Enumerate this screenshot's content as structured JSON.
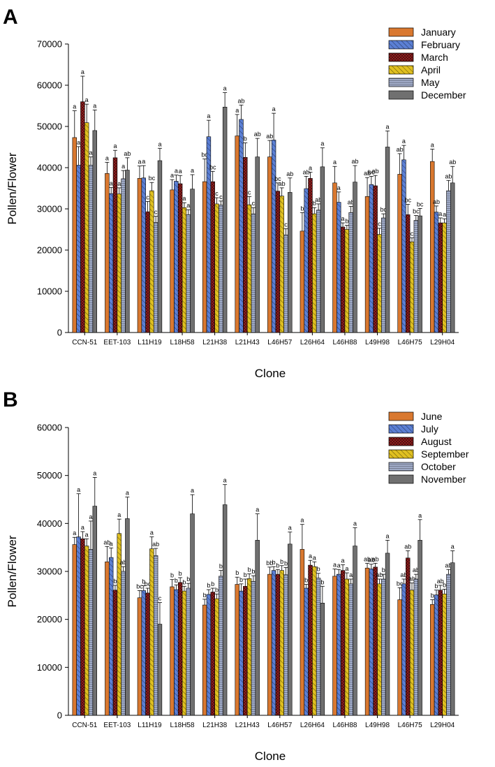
{
  "chart_data": [
    {
      "panel_label": "A",
      "type": "bar",
      "xlabel": "Clone",
      "ylabel": "Pollen/Flower",
      "ylim": [
        0,
        70000
      ],
      "yticks": [
        0,
        10000,
        20000,
        30000,
        40000,
        50000,
        60000,
        70000
      ],
      "grid": false,
      "legend_position": "top-right",
      "categories": [
        "CCN-51",
        "EET-103",
        "L11H19",
        "L18H58",
        "L21H38",
        "L21H43",
        "L46H57",
        "L26H64",
        "L46H88",
        "L49H98",
        "L46H75",
        "L29H04"
      ],
      "series": [
        {
          "name": "January",
          "color": "#d9782f",
          "pattern": "solid",
          "values": [
            47300,
            38600,
            37400,
            34600,
            36600,
            47700,
            42600,
            24600,
            36300,
            33000,
            38400,
            41500
          ],
          "errors": [
            6500,
            2700,
            3000,
            2500,
            5500,
            5200,
            4000,
            4500,
            4000,
            4600,
            5000,
            3000
          ],
          "letters": [
            "a",
            "a",
            "a",
            "a",
            "bc",
            "a",
            "ab",
            "b",
            "a",
            "ab",
            "ab",
            "a"
          ]
        },
        {
          "name": "February",
          "color": "#5b7fd4",
          "pattern": "diag",
          "values": [
            40600,
            33700,
            37500,
            36700,
            47500,
            51700,
            46700,
            34900,
            31600,
            35900,
            41900,
            29200
          ],
          "errors": [
            4500,
            1500,
            3000,
            1500,
            4000,
            3500,
            6500,
            3000,
            2500,
            2000,
            3500,
            1500
          ],
          "letters": [
            "a",
            "a",
            "a",
            "a",
            "a",
            "ab",
            "a",
            "ab",
            "a",
            "bc",
            "a",
            "ab"
          ]
        },
        {
          "name": "March",
          "color": "#a02020",
          "pattern": "cross",
          "values": [
            56000,
            42400,
            29300,
            36100,
            36600,
            42500,
            34300,
            37400,
            25600,
            35600,
            28600,
            26600
          ],
          "errors": [
            6200,
            1800,
            2500,
            2000,
            2500,
            3500,
            2000,
            1500,
            1000,
            2500,
            2500,
            1200
          ],
          "letters": [
            "a",
            "a",
            "c",
            "a",
            "bc",
            "b",
            "bc",
            "a",
            "a",
            "ab",
            "bc",
            "a"
          ]
        },
        {
          "name": "April",
          "color": "#e0c020",
          "pattern": "diag",
          "values": [
            50900,
            33600,
            34400,
            30300,
            31200,
            31000,
            33100,
            28800,
            25000,
            23800,
            22000,
            26600
          ],
          "errors": [
            4500,
            1500,
            2000,
            1200,
            1500,
            2000,
            2000,
            1500,
            1000,
            1500,
            1000,
            1000
          ],
          "letters": [
            "a",
            "a",
            "bc",
            "a",
            "c",
            "c",
            "ab",
            "b",
            "b",
            "c",
            "c",
            "a"
          ]
        },
        {
          "name": "May",
          "color": "#a0abc8",
          "pattern": "horiz",
          "values": [
            40600,
            37300,
            26700,
            28600,
            30900,
            28800,
            23700,
            29700,
            29100,
            27800,
            27200,
            34400
          ],
          "errors": [
            2000,
            2000,
            1500,
            1200,
            1000,
            1500,
            1500,
            1500,
            1500,
            1000,
            1200,
            2500
          ],
          "letters": [
            "a",
            "a",
            "c",
            "a",
            "c",
            "c",
            "c",
            "ab",
            "ab",
            "bc",
            "bc",
            "ab"
          ]
        },
        {
          "name": "December",
          "color": "#707070",
          "pattern": "solid",
          "values": [
            49000,
            39400,
            41700,
            34800,
            54700,
            42600,
            34000,
            40200,
            36500,
            45000,
            28300,
            36300
          ],
          "errors": [
            5000,
            3000,
            3000,
            3500,
            3500,
            4500,
            3500,
            4600,
            4000,
            3900,
            1800,
            4000
          ],
          "letters": [
            "a",
            "ab",
            "a",
            "a",
            "a",
            "ab",
            "ab",
            "a",
            "ab",
            "a",
            "bc",
            "ab"
          ]
        }
      ]
    },
    {
      "panel_label": "B",
      "type": "bar",
      "xlabel": "Clone",
      "ylabel": "Pollen/Flower",
      "ylim": [
        0,
        60000
      ],
      "yticks": [
        0,
        10000,
        20000,
        30000,
        40000,
        50000,
        60000
      ],
      "grid": false,
      "legend_position": "top-right",
      "categories": [
        "CCN-51",
        "EET-103",
        "L11H19",
        "L18H58",
        "L21H38",
        "L21H43",
        "L46H57",
        "L26H64",
        "L46H88",
        "L49H98",
        "L46H75",
        "L29H04"
      ],
      "series": [
        {
          "name": "June",
          "color": "#d9782f",
          "pattern": "solid",
          "values": [
            35600,
            32000,
            24500,
            26800,
            23000,
            27300,
            29400,
            34600,
            29000,
            30700,
            24100,
            23100
          ],
          "errors": [
            1500,
            3200,
            1500,
            1500,
            1200,
            1500,
            1500,
            5200,
            1500,
            1000,
            2500,
            1000
          ],
          "letters": [
            "a",
            "ab",
            "bc",
            "b",
            "b",
            "b",
            "bb",
            "a",
            "a",
            "ab",
            "bc",
            "b"
          ]
        },
        {
          "name": "July",
          "color": "#5b7fd4",
          "pattern": "diag",
          "values": [
            37200,
            32900,
            26000,
            26200,
            25200,
            25900,
            30200,
            26500,
            29400,
            30500,
            27400,
            25100
          ],
          "errors": [
            9000,
            2000,
            1000,
            1000,
            1000,
            1500,
            800,
            800,
            1000,
            1000,
            1000,
            1000
          ],
          "letters": [
            "a",
            "a",
            "b",
            "b",
            "b",
            "b",
            "b",
            "b",
            "a",
            "ab",
            "ab",
            "b"
          ]
        },
        {
          "name": "August",
          "color": "#a02020",
          "pattern": "cross",
          "values": [
            36800,
            26100,
            25500,
            27700,
            25700,
            26900,
            29400,
            31300,
            30200,
            30900,
            32800,
            26100
          ],
          "errors": [
            1500,
            1000,
            1000,
            1000,
            800,
            1500,
            1000,
            1000,
            1200,
            800,
            1500,
            1000
          ],
          "letters": [
            "a",
            "b",
            "bc",
            "b",
            "b",
            "b",
            "b",
            "a",
            "a",
            "ab",
            "ab",
            "ab"
          ]
        },
        {
          "name": "September",
          "color": "#e0c020",
          "pattern": "diag",
          "values": [
            35300,
            37900,
            34700,
            25900,
            24300,
            28500,
            30200,
            31000,
            28400,
            27400,
            26100,
            25300
          ],
          "errors": [
            1500,
            3000,
            2500,
            1000,
            1000,
            1000,
            1000,
            1000,
            1300,
            1000,
            1500,
            1000
          ],
          "letters": [
            "a",
            "a",
            "a",
            "b",
            "b",
            "b",
            "b",
            "a",
            "a",
            "ab",
            "ab",
            "b"
          ]
        },
        {
          "name": "October",
          "color": "#a0abc8",
          "pattern": "horiz",
          "values": [
            34600,
            30000,
            33300,
            26500,
            29000,
            27900,
            29300,
            28600,
            27400,
            28400,
            28400,
            29400
          ],
          "errors": [
            5900,
            1000,
            1500,
            1000,
            1200,
            1200,
            1500,
            1000,
            1000,
            1000,
            1000,
            1000
          ],
          "letters": [
            "a",
            "ab",
            "ab",
            "b",
            "b",
            "b",
            "b",
            "b",
            "a",
            "b",
            "ab",
            "ab"
          ]
        },
        {
          "name": "November",
          "color": "#707070",
          "pattern": "solid",
          "values": [
            43600,
            41000,
            19000,
            42000,
            43900,
            36500,
            35700,
            23400,
            35300,
            33800,
            36500,
            31800
          ],
          "errors": [
            6000,
            4500,
            4500,
            4000,
            4200,
            5500,
            2500,
            3500,
            3800,
            2700,
            4300,
            2500
          ],
          "letters": [
            "a",
            "a",
            "c",
            "a",
            "a",
            "a",
            "a",
            "b",
            "a",
            "a",
            "a",
            "a"
          ]
        }
      ]
    }
  ]
}
